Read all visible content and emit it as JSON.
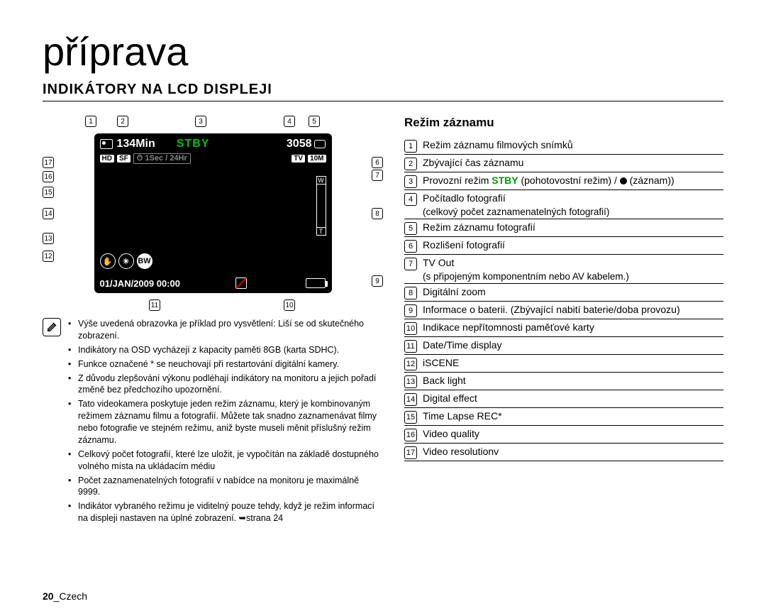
{
  "page": {
    "title": "příprava",
    "section_title": "INDIKÁTORY NA LCD DISPLEJI",
    "footer_num": "20",
    "footer_lang": "_Czech"
  },
  "lcd": {
    "rec_time": "134Min",
    "stby": "STBY",
    "counter": "3058",
    "hd_badge": "HD",
    "sf_badge": "SF",
    "timelapse": "1Sec / 24Hr",
    "tv_badge": "TV",
    "res_badge": "10M",
    "bw": "BW",
    "datetime": "01/JAN/2009 00:00",
    "w": "W",
    "t": "T"
  },
  "callouts": [
    "1",
    "2",
    "3",
    "4",
    "5",
    "6",
    "7",
    "8",
    "9",
    "10",
    "11",
    "12",
    "13",
    "14",
    "15",
    "16",
    "17"
  ],
  "notes": {
    "items": [
      "Výše uvedená obrazovka je příklad pro vysvětlení: Liší se od skutečného zobrazení.",
      "Indikátory na OSD vycházejí z kapacity paměti 8GB (karta SDHC).",
      "Funkce označené * se neuchovají při restartování digitální kamery.",
      "Z důvodu zlepšování výkonu podléhají indikátory na monitoru a jejich pořadí změně bez předchozího upozornění.",
      "Tato videokamera poskytuje jeden režim záznamu, který je kombinovaným režimem záznamu filmu a fotografií. Můžete tak snadno zaznamenávat filmy nebo fotografie ve stejném režimu, aniž byste museli měnit příslušný režim záznamu.",
      "Celkový počet fotografií, které lze uložit, je vypočítán na základě dostupného volného místa na ukládacím médiu",
      "Počet zaznamenatelných fotografií v nabídce na monitoru je maximálně 9999.",
      "Indikátor vybraného režimu je viditelný pouze tehdy, když je režim informací na displeji nastaven na úplné zobrazení. ➥strana 24"
    ]
  },
  "legend": {
    "title": "Režim záznamu",
    "rows": [
      {
        "n": "1",
        "t": "Režim záznamu filmových snímků"
      },
      {
        "n": "2",
        "t": "Zbývající čas záznamu"
      },
      {
        "n": "3",
        "t_html": "Provozní režim <span class='green'>STBY</span> (pohotovostní režim) / <span class='dot'></span> (záznam))"
      },
      {
        "n": "4",
        "t": "Počítadlo fotografií",
        "sub": "(celkový počet zaznamenatelných fotografií)"
      },
      {
        "n": "5",
        "t": "Režim záznamu fotografií"
      },
      {
        "n": "6",
        "t": "Rozlišení fotografií"
      },
      {
        "n": "7",
        "t": "TV Out",
        "sub": "(s připojeným komponentním nebo AV kabelem.)"
      },
      {
        "n": "8",
        "t": "Digitální zoom"
      },
      {
        "n": "9",
        "t": "Informace o baterii. (Zbývající nabití baterie/doba provozu)"
      },
      {
        "n": "10",
        "t": "Indikace nepřítomnosti paměťové karty"
      },
      {
        "n": "11",
        "t": "Date/Time display"
      },
      {
        "n": "12",
        "t": "iSCENE"
      },
      {
        "n": "13",
        "t": "Back light"
      },
      {
        "n": "14",
        "t": "Digital effect"
      },
      {
        "n": "15",
        "t": "Time Lapse REC*"
      },
      {
        "n": "16",
        "t": "Video quality"
      },
      {
        "n": "17",
        "t": "Video resolutionv"
      }
    ]
  }
}
